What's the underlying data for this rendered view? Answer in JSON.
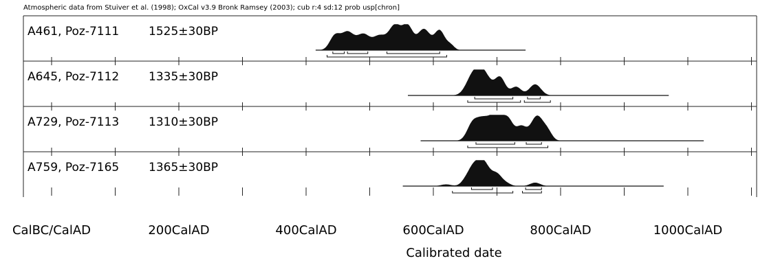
{
  "chart_data": {
    "type": "area",
    "header_note": "Atmospheric data from Stuiver et al. (1998); OxCal v3.9 Bronk Ramsey (2003); cub r:4 sd:12 prob usp[chron]",
    "xlabel": "Calibrated date",
    "xlim": [
      -100,
      1150
    ],
    "tick_labels": [
      {
        "value": 0,
        "label": "CalBC/CalAD"
      },
      {
        "value": 200,
        "label": "200CalAD"
      },
      {
        "value": 400,
        "label": "400CalAD"
      },
      {
        "value": 600,
        "label": "600CalAD"
      },
      {
        "value": 800,
        "label": "800CalAD"
      },
      {
        "value": 1000,
        "label": "1000CalAD"
      }
    ],
    "minor_ticks": [
      0,
      100,
      200,
      300,
      400,
      500,
      600,
      700,
      800,
      900,
      1000,
      1100
    ],
    "samples": [
      {
        "name": "A461, Poz-7111",
        "bp": "1525±30BP",
        "line_range": [
          415,
          745
        ],
        "peaks": [
          [
            445,
            8,
            0.55
          ],
          [
            465,
            10,
            0.72
          ],
          [
            490,
            10,
            0.62
          ],
          [
            515,
            10,
            0.55
          ],
          [
            540,
            10,
            1.0
          ],
          [
            560,
            8,
            0.88
          ],
          [
            585,
            10,
            0.85
          ],
          [
            610,
            8,
            0.78
          ],
          [
            627,
            6,
            0.2
          ]
        ],
        "range_1sigma": [
          [
            442,
            460
          ],
          [
            465,
            497
          ],
          [
            527,
            610
          ]
        ],
        "range_2sigma": [
          [
            433,
            621
          ]
        ]
      },
      {
        "name": "A645, Poz-7112",
        "bp": "1335±30BP",
        "line_range": [
          560,
          970
        ],
        "peaks": [
          [
            660,
            10,
            0.55
          ],
          [
            677,
            12,
            1.0
          ],
          [
            705,
            8,
            0.7
          ],
          [
            730,
            8,
            0.35
          ],
          [
            760,
            9,
            0.45
          ]
        ],
        "range_1sigma": [
          [
            665,
            725
          ],
          [
            748,
            768
          ]
        ],
        "range_2sigma": [
          [
            654,
            737
          ],
          [
            743,
            784
          ]
        ]
      },
      {
        "name": "A729, Poz-7113",
        "bp": "1310±30BP",
        "line_range": [
          580,
          1025
        ],
        "peaks": [
          [
            660,
            8,
            0.45
          ],
          [
            677,
            12,
            0.88
          ],
          [
            700,
            10,
            0.95
          ],
          [
            718,
            8,
            0.75
          ],
          [
            738,
            8,
            0.55
          ],
          [
            763,
            10,
            1.0
          ],
          [
            780,
            7,
            0.3
          ]
        ],
        "range_1sigma": [
          [
            667,
            728
          ],
          [
            746,
            770
          ]
        ],
        "range_2sigma": [
          [
            654,
            780
          ]
        ]
      },
      {
        "name": "A759, Poz-7165",
        "bp": "1365±30BP",
        "line_range": [
          552,
          962
        ],
        "peaks": [
          [
            620,
            8,
            0.07
          ],
          [
            650,
            7,
            0.18
          ],
          [
            662,
            8,
            0.6
          ],
          [
            678,
            10,
            1.0
          ],
          [
            700,
            8,
            0.45
          ],
          [
            715,
            7,
            0.1
          ],
          [
            760,
            8,
            0.14
          ]
        ],
        "range_1sigma": [
          [
            660,
            693
          ],
          [
            745,
            770
          ]
        ],
        "range_2sigma": [
          [
            630,
            725
          ],
          [
            740,
            770
          ]
        ]
      }
    ]
  }
}
